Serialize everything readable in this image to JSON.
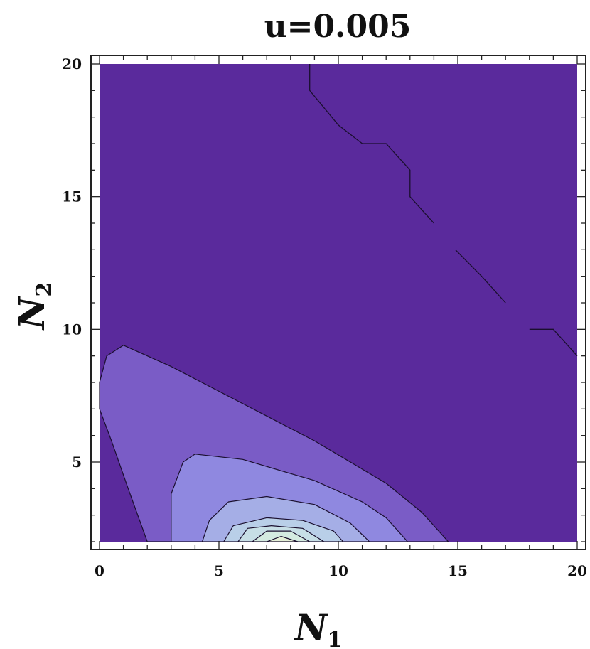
{
  "chart_data": {
    "type": "contour",
    "title": "u=0.005",
    "xlabel": {
      "main": "N",
      "subscript": "1"
    },
    "ylabel": {
      "main": "N",
      "subscript": "2"
    },
    "xlim": [
      0,
      20
    ],
    "ylim": [
      2,
      20
    ],
    "x_ticks": [
      0,
      5,
      10,
      15,
      20
    ],
    "y_ticks": [
      5,
      10,
      15,
      20
    ],
    "grid": false,
    "legend": "none",
    "background_color": "#5a2a9c",
    "regions": [
      {
        "level": 1,
        "color": "#7a5cc6",
        "points": [
          [
            0,
            7
          ],
          [
            0,
            8
          ],
          [
            0.3,
            9
          ],
          [
            1,
            9.4
          ],
          [
            3,
            8.6
          ],
          [
            6,
            7.2
          ],
          [
            9,
            5.8
          ],
          [
            12,
            4.2
          ],
          [
            13.5,
            3.1
          ],
          [
            14.6,
            2
          ],
          [
            2,
            2
          ],
          [
            1.2,
            4
          ],
          [
            0.5,
            5.8
          ]
        ]
      },
      {
        "level": 2,
        "color": "#8f88e0",
        "points": [
          [
            3,
            2
          ],
          [
            3,
            3.8
          ],
          [
            3.5,
            5
          ],
          [
            4,
            5.3
          ],
          [
            6,
            5.1
          ],
          [
            9,
            4.3
          ],
          [
            11,
            3.5
          ],
          [
            12,
            2.9
          ],
          [
            12.9,
            2
          ]
        ]
      },
      {
        "level": 3,
        "color": "#a5aee6",
        "points": [
          [
            4.3,
            2
          ],
          [
            4.6,
            2.8
          ],
          [
            5.4,
            3.5
          ],
          [
            7,
            3.7
          ],
          [
            9,
            3.4
          ],
          [
            10.5,
            2.7
          ],
          [
            11.3,
            2
          ]
        ]
      },
      {
        "level": 4,
        "color": "#b9cfe8",
        "points": [
          [
            5.2,
            2
          ],
          [
            5.6,
            2.6
          ],
          [
            7,
            2.9
          ],
          [
            8.5,
            2.8
          ],
          [
            9.8,
            2.4
          ],
          [
            10.2,
            2
          ]
        ]
      },
      {
        "level": 5,
        "color": "#c7dfe6",
        "points": [
          [
            5.8,
            2
          ],
          [
            6.2,
            2.5
          ],
          [
            7.2,
            2.6
          ],
          [
            8.5,
            2.5
          ],
          [
            9.4,
            2
          ]
        ]
      },
      {
        "level": 6,
        "color": "#d4ebe0",
        "points": [
          [
            6.4,
            2
          ],
          [
            7,
            2.4
          ],
          [
            8,
            2.4
          ],
          [
            8.8,
            2
          ]
        ]
      },
      {
        "level": 7,
        "color": "#e4efd6",
        "points": [
          [
            7,
            2
          ],
          [
            7.6,
            2.2
          ],
          [
            8.3,
            2
          ]
        ]
      }
    ],
    "contour_lines": [
      {
        "points": [
          [
            8.8,
            20
          ],
          [
            8.8,
            19
          ],
          [
            10,
            17.7
          ],
          [
            11,
            17
          ],
          [
            12,
            17
          ],
          [
            13,
            16
          ],
          [
            13,
            15
          ],
          [
            14,
            14
          ]
        ]
      },
      {
        "points": [
          [
            14.9,
            13
          ],
          [
            16,
            12
          ],
          [
            17,
            11
          ]
        ]
      },
      {
        "points": [
          [
            18,
            10
          ],
          [
            19,
            10
          ],
          [
            20,
            9
          ]
        ]
      }
    ]
  }
}
